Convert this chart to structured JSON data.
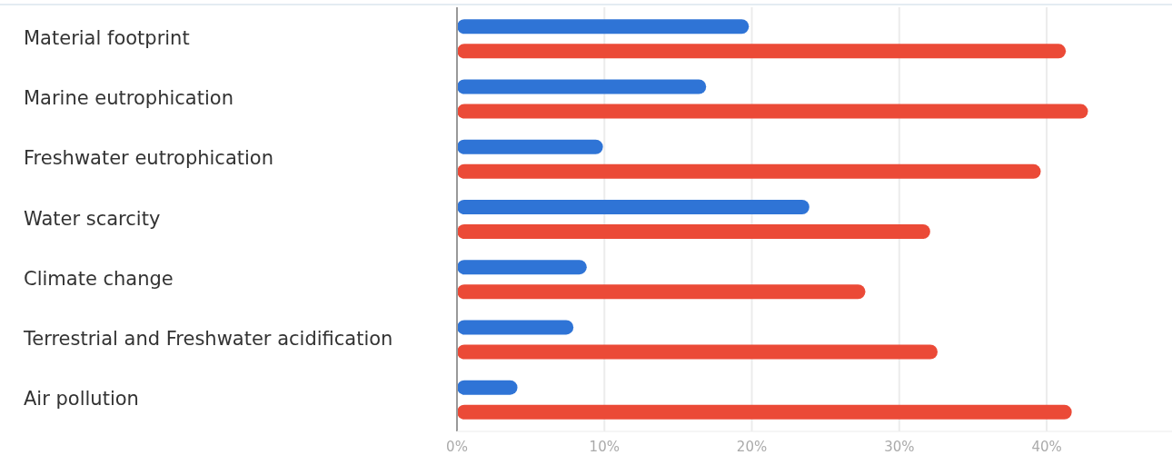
{
  "chart_data": {
    "type": "bar",
    "orientation": "horizontal",
    "categories": [
      "Material footprint",
      "Marine eutrophication",
      "Freshwater eutrophication",
      "Water scarcity",
      "Climate change",
      "Terrestrial and Freshwater acidification",
      "Air pollution"
    ],
    "series": [
      {
        "color": "#2f74d6",
        "values": [
          19.8,
          16.9,
          9.9,
          23.9,
          8.8,
          7.9,
          4.1
        ]
      },
      {
        "color": "#eb4a37",
        "values": [
          41.3,
          42.8,
          39.6,
          32.1,
          27.7,
          32.6,
          41.7
        ]
      }
    ],
    "xlim": [
      0,
      48.5
    ],
    "xticks": [
      {
        "value": 0,
        "label": "0%"
      },
      {
        "value": 10,
        "label": "10%"
      },
      {
        "value": 20,
        "label": "20%"
      },
      {
        "value": 30,
        "label": "30%"
      },
      {
        "value": 40,
        "label": "40%"
      }
    ],
    "grid": "x"
  }
}
